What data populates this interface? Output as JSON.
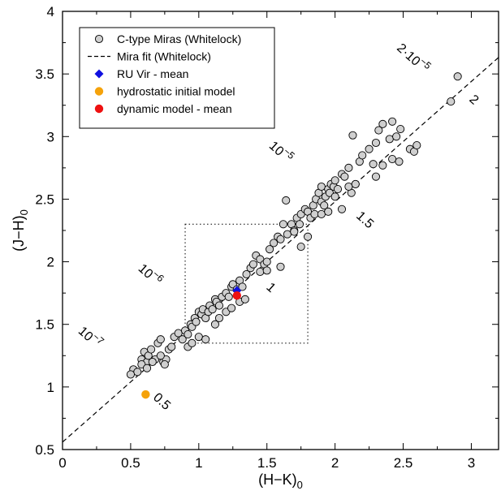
{
  "chart_data": {
    "type": "scatter",
    "title": "",
    "xlabel": "(H−K)",
    "xlabel_sub": "0",
    "ylabel": "(J−H)",
    "ylabel_sub": "0",
    "xlim": [
      0,
      3.2
    ],
    "ylim": [
      0.5,
      4
    ],
    "xticks": [
      "0",
      "0.5",
      "1",
      "1.5",
      "2",
      "2.5",
      "3"
    ],
    "yticks": [
      "0.5",
      "1",
      "1.5",
      "2",
      "2.5",
      "3",
      "3.5",
      "4"
    ],
    "legend": [
      {
        "label": "C-type Miras   (Whitelock)",
        "marker": "circle",
        "color": "#cfcfcf"
      },
      {
        "label": "Mira fit   (Whitelock)",
        "marker": "dashed-line",
        "color": "#000000"
      },
      {
        "label": "RU Vir - mean",
        "marker": "diamond",
        "color": "#1010e0"
      },
      {
        "label": "hydrostatic initial model",
        "marker": "circle",
        "color": "#f5a20a"
      },
      {
        "label": "dynamic model - mean",
        "marker": "circle",
        "color": "#ee1111"
      }
    ],
    "fit_line": {
      "slope": 0.96,
      "intercept": 0.56
    },
    "box": {
      "x": [
        0.9,
        1.8
      ],
      "y": [
        1.35,
        2.3
      ]
    },
    "annotations": [
      {
        "text": "2·10",
        "sup": "−5",
        "x": 2.55,
        "y": 3.6,
        "rot": 42
      },
      {
        "text": "10",
        "sup": "−5",
        "x": 1.58,
        "y": 2.85,
        "rot": 42
      },
      {
        "text": "10",
        "sup": "−6",
        "x": 0.62,
        "y": 1.87,
        "rot": 42
      },
      {
        "text": "10",
        "sup": "−7",
        "x": 0.18,
        "y": 1.37,
        "rot": 42
      },
      {
        "text": "2",
        "sup": "",
        "x": 3.0,
        "y": 3.27,
        "rot": 42
      },
      {
        "text": "1.5",
        "sup": "",
        "x": 2.2,
        "y": 2.31,
        "rot": 42
      },
      {
        "text": "1",
        "sup": "",
        "x": 1.51,
        "y": 1.77,
        "rot": 42
      },
      {
        "text": "0.5",
        "sup": "",
        "x": 0.71,
        "y": 0.86,
        "rot": 42
      }
    ],
    "series": [
      {
        "name": "C-type Miras   (Whitelock)",
        "x": [
          0.52,
          0.55,
          0.58,
          0.6,
          0.62,
          0.63,
          0.65,
          0.68,
          0.7,
          0.72,
          0.74,
          0.76,
          0.78,
          0.8,
          0.82,
          0.85,
          0.88,
          0.9,
          0.92,
          0.94,
          0.95,
          0.97,
          0.98,
          1.0,
          1.02,
          1.03,
          1.05,
          1.07,
          1.08,
          1.1,
          1.12,
          1.13,
          1.15,
          1.17,
          1.2,
          1.22,
          1.24,
          1.25,
          1.28,
          1.3,
          1.32,
          1.35,
          1.38,
          1.4,
          1.42,
          1.45,
          1.48,
          1.5,
          1.52,
          1.55,
          1.58,
          1.6,
          1.62,
          1.64,
          1.65,
          1.68,
          1.7,
          1.72,
          1.74,
          1.75,
          1.78,
          1.8,
          1.82,
          1.84,
          1.86,
          1.88,
          1.9,
          1.9,
          1.92,
          1.93,
          1.95,
          1.96,
          1.97,
          1.99,
          2.0,
          2.02,
          2.05,
          2.07,
          2.1,
          2.12,
          2.13,
          2.15,
          2.18,
          2.2,
          2.25,
          2.28,
          2.3,
          2.32,
          2.35,
          2.4,
          2.42,
          2.45,
          2.48,
          2.55,
          2.58,
          2.6,
          2.85,
          2.9,
          0.5,
          0.58,
          0.62,
          0.66,
          0.72,
          0.75,
          0.92,
          0.95,
          1.0,
          1.05,
          1.12,
          1.15,
          1.2,
          1.24,
          1.3,
          1.34,
          1.45,
          1.5,
          1.6,
          1.7,
          1.75,
          1.8,
          1.85,
          1.9,
          1.95,
          2.0,
          2.05,
          2.1,
          2.15,
          2.35,
          2.3,
          2.42,
          2.47
        ],
        "y": [
          1.14,
          1.12,
          1.22,
          1.28,
          1.2,
          1.25,
          1.3,
          1.22,
          1.35,
          1.38,
          1.2,
          1.22,
          1.3,
          1.32,
          1.4,
          1.43,
          1.38,
          1.45,
          1.42,
          1.5,
          1.48,
          1.55,
          1.52,
          1.6,
          1.58,
          1.62,
          1.55,
          1.6,
          1.65,
          1.62,
          1.7,
          1.68,
          1.65,
          1.72,
          1.75,
          1.72,
          1.8,
          1.82,
          1.78,
          1.85,
          1.8,
          1.9,
          1.95,
          1.98,
          2.05,
          2.02,
          1.98,
          2.0,
          2.1,
          2.15,
          2.2,
          2.18,
          2.3,
          2.49,
          2.22,
          2.3,
          2.25,
          2.35,
          2.3,
          2.38,
          2.42,
          2.4,
          2.35,
          2.45,
          2.5,
          2.55,
          2.48,
          2.6,
          2.45,
          2.52,
          2.58,
          2.55,
          2.62,
          2.6,
          2.65,
          2.58,
          2.7,
          2.68,
          2.75,
          2.55,
          3.01,
          2.62,
          2.8,
          2.85,
          2.9,
          2.78,
          2.95,
          3.05,
          3.1,
          2.98,
          3.12,
          3.0,
          3.06,
          2.9,
          2.88,
          2.93,
          3.28,
          3.48,
          1.1,
          1.18,
          1.15,
          1.2,
          1.25,
          1.18,
          1.32,
          1.35,
          1.4,
          1.38,
          1.5,
          1.55,
          1.6,
          1.63,
          1.68,
          1.7,
          1.92,
          1.93,
          1.96,
          2.24,
          2.12,
          2.2,
          2.38,
          2.38,
          2.4,
          2.52,
          2.42,
          2.6,
          2.62,
          2.77,
          2.68,
          2.82,
          2.8
        ]
      },
      {
        "name": "RU Vir - mean",
        "x": [
          1.28
        ],
        "y": [
          1.77
        ]
      },
      {
        "name": "hydrostatic initial model",
        "x": [
          0.61
        ],
        "y": [
          0.94
        ]
      },
      {
        "name": "dynamic model - mean",
        "x": [
          1.28
        ],
        "y": [
          1.73
        ]
      }
    ]
  }
}
